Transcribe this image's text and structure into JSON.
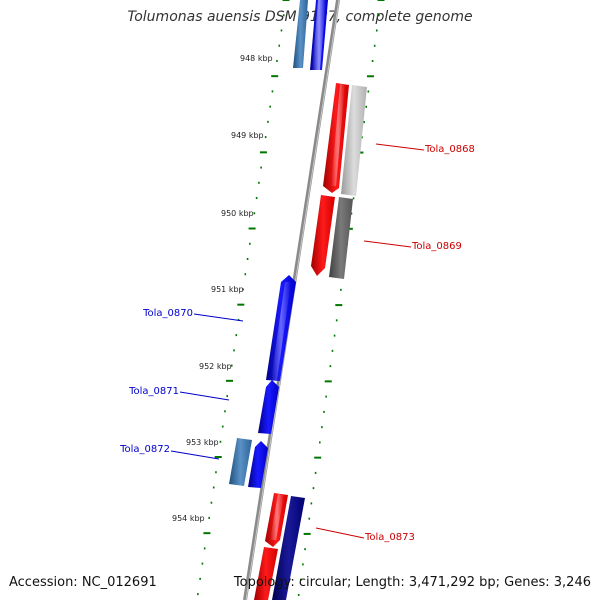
{
  "title": "Tolumonas auensis DSM 9187, complete genome",
  "footer": {
    "accession": "Accession: NC_012691",
    "summary": "Topology: circular; Length: 3,471,292 bp; Genes: 3,246"
  },
  "colors": {
    "backbone": "#888888",
    "tick": "#007700",
    "forward_gene": "#0000ee",
    "reverse_gene": "#ee0000",
    "forward_label": "#0000cc",
    "reverse_label": "#cc0000"
  },
  "position_ticks": [
    {
      "kbp": 948,
      "label": "948 kbp"
    },
    {
      "kbp": 949,
      "label": "949 kbp"
    },
    {
      "kbp": 950,
      "label": "950 kbp"
    },
    {
      "kbp": 951,
      "label": "951 kbp"
    },
    {
      "kbp": 952,
      "label": "952 kbp"
    },
    {
      "kbp": 953,
      "label": "953 kbp"
    },
    {
      "kbp": 954,
      "label": "954 kbp"
    }
  ],
  "genes": [
    {
      "label": "Tola_0868",
      "strand": "reverse"
    },
    {
      "label": "Tola_0869",
      "strand": "reverse"
    },
    {
      "label": "Tola_0870",
      "strand": "forward"
    },
    {
      "label": "Tola_0871",
      "strand": "forward"
    },
    {
      "label": "Tola_0872",
      "strand": "forward"
    },
    {
      "label": "Tola_0873",
      "strand": "reverse"
    }
  ]
}
